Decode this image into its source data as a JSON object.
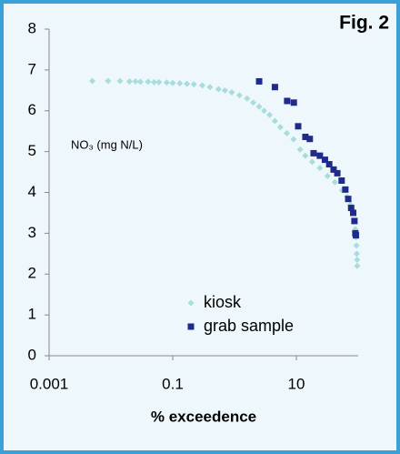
{
  "chart_data": {
    "type": "scatter",
    "title": "Fig. 2",
    "annotation": "NO₃ (mg N/L)",
    "x_label": "% exceedence",
    "xscale": "log",
    "xlim": [
      0.001,
      100
    ],
    "xticks": [
      0.001,
      0.1,
      10
    ],
    "ylim": [
      0,
      8
    ],
    "yticks": [
      0,
      1,
      2,
      3,
      4,
      5,
      6,
      7,
      8
    ],
    "legend": "bottom-right",
    "series": [
      {
        "name": "kiosk",
        "color": "#a9dcdc",
        "marker": "diamond",
        "x": [
          0.005,
          0.009,
          0.014,
          0.02,
          0.025,
          0.03,
          0.04,
          0.05,
          0.06,
          0.08,
          0.1,
          0.13,
          0.17,
          0.22,
          0.3,
          0.4,
          0.55,
          0.7,
          0.9,
          1.2,
          1.6,
          2,
          2.5,
          3,
          3.7,
          4.5,
          5.5,
          7,
          9,
          11.5,
          14,
          18,
          24,
          32,
          42,
          55,
          66,
          75,
          82,
          87,
          90,
          92,
          94,
          95,
          96,
          96.5
        ],
        "values": [
          6.73,
          6.73,
          6.73,
          6.72,
          6.72,
          6.71,
          6.71,
          6.7,
          6.7,
          6.69,
          6.68,
          6.67,
          6.66,
          6.65,
          6.62,
          6.58,
          6.53,
          6.5,
          6.45,
          6.38,
          6.3,
          6.2,
          6.1,
          6.0,
          5.9,
          5.75,
          5.6,
          5.45,
          5.3,
          5.05,
          4.9,
          4.75,
          4.6,
          4.4,
          4.25,
          4.05,
          3.9,
          3.7,
          3.5,
          3.3,
          3.1,
          2.9,
          2.7,
          2.5,
          2.35,
          2.2
        ]
      },
      {
        "name": "grab sample",
        "color": "#1f2a8c",
        "marker": "square",
        "x": [
          2.5,
          4.5,
          7.1,
          9.1,
          10.7,
          14,
          16.5,
          19,
          24,
          29,
          34,
          40,
          46,
          54,
          62,
          69,
          77,
          83,
          87,
          90,
          92
        ],
        "values": [
          6.72,
          6.58,
          6.24,
          6.2,
          5.62,
          5.36,
          5.31,
          4.96,
          4.9,
          4.8,
          4.69,
          4.56,
          4.47,
          4.29,
          4.07,
          3.84,
          3.62,
          3.5,
          3.3,
          3.0,
          2.95
        ]
      }
    ]
  }
}
